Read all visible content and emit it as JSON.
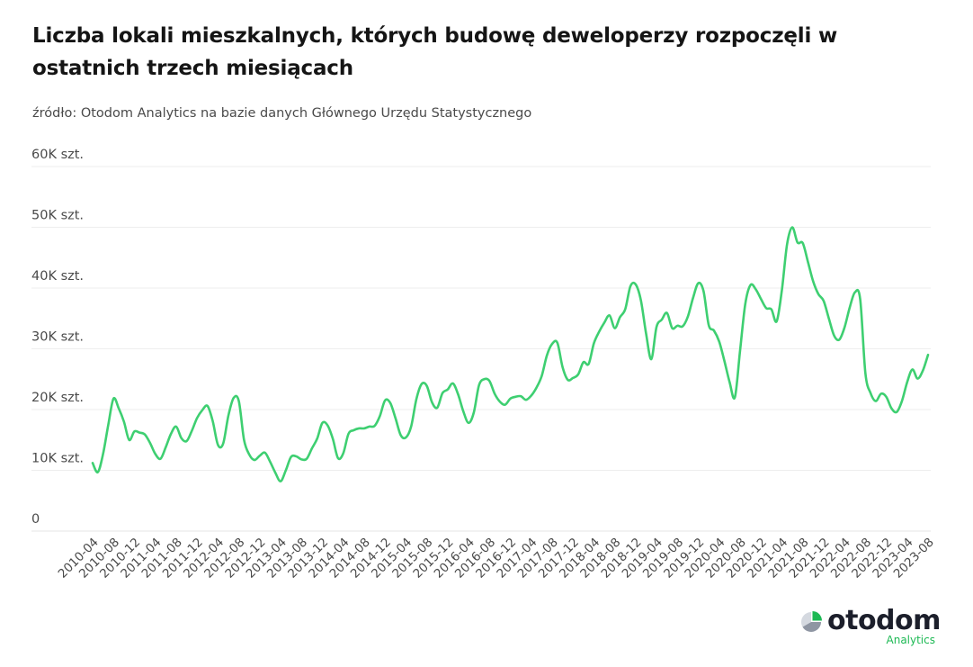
{
  "title": "Liczba lokali mieszkalnych, których budowę deweloperzy rozpoczęli w ostatnich trzech miesiącach",
  "subtitle": "źródło: Otodom Analytics na bazie danych Głównego Urzędu Statystycznego",
  "logo": {
    "name": "otodom",
    "sub": "Analytics"
  },
  "colors": {
    "line": "#3ecf71",
    "grid": "#eeeeee",
    "brand_green": "#1db954"
  },
  "chart_data": {
    "type": "line",
    "title": "Liczba lokali mieszkalnych, których budowę deweloperzy rozpoczęli w ostatnich trzech miesiącach",
    "xlabel": "",
    "ylabel": "",
    "x_start": "2010-04",
    "x_end": "2023-08",
    "x_frequency": "monthly",
    "ylim": [
      0,
      60000
    ],
    "grid": true,
    "y_ticks": [
      {
        "value": 0,
        "label": "0"
      },
      {
        "value": 10000,
        "label": "10K szt."
      },
      {
        "value": 20000,
        "label": "20K szt."
      },
      {
        "value": 30000,
        "label": "30K szt."
      },
      {
        "value": 40000,
        "label": "40K szt."
      },
      {
        "value": 50000,
        "label": "50K szt."
      },
      {
        "value": 60000,
        "label": "60K szt."
      }
    ],
    "x_ticks": [
      "2010-04",
      "2010-08",
      "2010-12",
      "2011-04",
      "2011-08",
      "2011-12",
      "2012-04",
      "2012-08",
      "2012-12",
      "2013-04",
      "2013-08",
      "2013-12",
      "2014-04",
      "2014-08",
      "2014-12",
      "2015-04",
      "2015-08",
      "2015-12",
      "2016-04",
      "2016-08",
      "2016-12",
      "2017-04",
      "2017-08",
      "2017-12",
      "2018-04",
      "2018-08",
      "2018-12",
      "2019-04",
      "2019-08",
      "2019-12",
      "2020-04",
      "2020-08",
      "2020-12",
      "2021-04",
      "2021-08",
      "2021-12",
      "2022-04",
      "2022-08",
      "2022-12",
      "2023-04",
      "2023-08"
    ],
    "series": [
      {
        "values": [
          11200,
          9700,
          12700,
          17500,
          21800,
          20200,
          18000,
          15000,
          16400,
          16200,
          15900,
          14500,
          12700,
          11900,
          13800,
          16000,
          17200,
          15300,
          14800,
          16500,
          18600,
          19900,
          20600,
          18100,
          14200,
          14400,
          19000,
          21900,
          21400,
          15000,
          12600,
          11700,
          12400,
          12900,
          11400,
          9600,
          8200,
          10000,
          12200,
          12300,
          11800,
          11900,
          13600,
          15200,
          17800,
          17400,
          15200,
          12000,
          12800,
          16000,
          16600,
          16900,
          16900,
          17200,
          17300,
          18900,
          21500,
          21100,
          18600,
          15800,
          15400,
          17200,
          21700,
          24200,
          23900,
          21200,
          20300,
          22700,
          23300,
          24300,
          22500,
          19700,
          17800,
          19500,
          24000,
          25000,
          24700,
          22600,
          21300,
          20800,
          21800,
          22100,
          22200,
          21600,
          22300,
          23600,
          25500,
          28900,
          30800,
          31000,
          27000,
          24900,
          25200,
          25800,
          27800,
          27500,
          30900,
          32800,
          34300,
          35500,
          33400,
          35200,
          36500,
          40300,
          40600,
          38000,
          32500,
          28300,
          33600,
          34800,
          35900,
          33400,
          33800,
          33700,
          35300,
          38400,
          40800,
          39500,
          33900,
          33000,
          31200,
          28000,
          24500,
          22000,
          29700,
          37400,
          40500,
          39800,
          38200,
          36700,
          36500,
          34500,
          39600,
          47200,
          50000,
          47500,
          47400,
          44300,
          41100,
          39000,
          37900,
          35000,
          32200,
          31500,
          33500,
          36800,
          39300,
          38200,
          26000,
          22700,
          21400,
          22600,
          22100,
          20200,
          19600,
          21400,
          24500,
          26600,
          25100,
          26400,
          29000
        ]
      }
    ]
  }
}
